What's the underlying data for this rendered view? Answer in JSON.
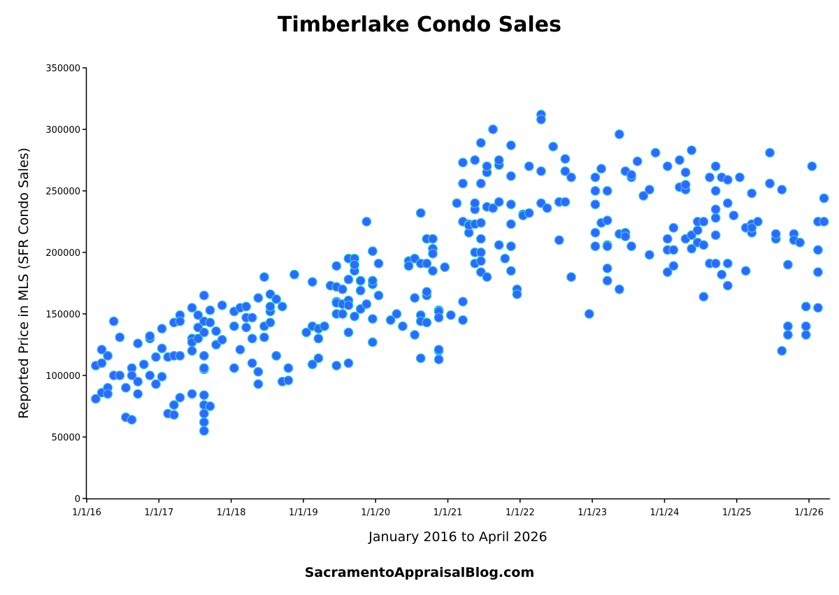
{
  "chart_data": {
    "type": "scatter",
    "title": "Timberlake Condo Sales",
    "xlabel": "January 2016 to April 2026",
    "ylabel": "Reported Price in MLS (SFR Condo Sales)",
    "footer": "SacramentoAppraisalBlog.com",
    "xlim": [
      "2016-01-01",
      "2026-04-12"
    ],
    "ylim": [
      0,
      350000
    ],
    "x_ticks": [
      {
        "date": "2016-01-01",
        "label": "1/1/16"
      },
      {
        "date": "2017-01-01",
        "label": "1/1/17"
      },
      {
        "date": "2018-01-01",
        "label": "1/1/18"
      },
      {
        "date": "2019-01-01",
        "label": "1/1/19"
      },
      {
        "date": "2020-01-01",
        "label": "1/1/20"
      },
      {
        "date": "2021-01-01",
        "label": "1/1/21"
      },
      {
        "date": "2022-01-01",
        "label": "1/1/22"
      },
      {
        "date": "2023-01-01",
        "label": "1/1/23"
      },
      {
        "date": "2024-01-01",
        "label": "1/1/24"
      },
      {
        "date": "2025-01-01",
        "label": "1/1/25"
      },
      {
        "date": "2026-01-01",
        "label": "1/1/26"
      }
    ],
    "y_ticks": [
      "0",
      "50000",
      "100000",
      "150000",
      "200000",
      "250000",
      "300000",
      "350000"
    ],
    "grid": false,
    "legend": "none",
    "colors": {
      "point_fill": "#3366ff",
      "point_stroke": "#33cccc",
      "axis": "#000000"
    },
    "points": [
      [
        "2016-02",
        108000
      ],
      [
        "2016-02",
        81000
      ],
      [
        "2016-03",
        121000
      ],
      [
        "2016-03",
        110000
      ],
      [
        "2016-03",
        86000
      ],
      [
        "2016-04",
        116000
      ],
      [
        "2016-04",
        90000
      ],
      [
        "2016-04",
        85000
      ],
      [
        "2016-05",
        144000
      ],
      [
        "2016-05",
        100000
      ],
      [
        "2016-06",
        100000
      ],
      [
        "2016-06",
        131000
      ],
      [
        "2016-07",
        66000
      ],
      [
        "2016-07",
        90000
      ],
      [
        "2016-08",
        64000
      ],
      [
        "2016-08",
        106000
      ],
      [
        "2016-08",
        100000
      ],
      [
        "2016-09",
        126000
      ],
      [
        "2016-09",
        85000
      ],
      [
        "2016-09",
        95000
      ],
      [
        "2016-10",
        109000
      ],
      [
        "2016-11",
        130000
      ],
      [
        "2016-11",
        100000
      ],
      [
        "2016-11",
        132000
      ],
      [
        "2016-12",
        93000
      ],
      [
        "2016-12",
        115000
      ],
      [
        "2017-01",
        138000
      ],
      [
        "2017-01",
        122000
      ],
      [
        "2017-01",
        99000
      ],
      [
        "2017-02",
        69000
      ],
      [
        "2017-02",
        115000
      ],
      [
        "2017-03",
        76000
      ],
      [
        "2017-03",
        68000
      ],
      [
        "2017-03",
        116000
      ],
      [
        "2017-03",
        143000
      ],
      [
        "2017-04",
        82000
      ],
      [
        "2017-04",
        116000
      ],
      [
        "2017-04",
        149000
      ],
      [
        "2017-04",
        144000
      ],
      [
        "2017-06",
        155000
      ],
      [
        "2017-06",
        130000
      ],
      [
        "2017-06",
        127000
      ],
      [
        "2017-06",
        120000
      ],
      [
        "2017-06",
        85000
      ],
      [
        "2017-07",
        139000
      ],
      [
        "2017-07",
        130000
      ],
      [
        "2017-07",
        149000
      ],
      [
        "2017-08",
        165000
      ],
      [
        "2017-08",
        105000
      ],
      [
        "2017-08",
        144000
      ],
      [
        "2017-08",
        116000
      ],
      [
        "2017-08",
        106000
      ],
      [
        "2017-08",
        84000
      ],
      [
        "2017-08",
        135000
      ],
      [
        "2017-08",
        76000
      ],
      [
        "2017-08",
        69000
      ],
      [
        "2017-08",
        62000
      ],
      [
        "2017-08",
        55000
      ],
      [
        "2017-09",
        75000
      ],
      [
        "2017-09",
        143000
      ],
      [
        "2017-09",
        153000
      ],
      [
        "2017-10",
        125000
      ],
      [
        "2017-10",
        136000
      ],
      [
        "2017-11",
        129000
      ],
      [
        "2017-11",
        157000
      ],
      [
        "2018-01",
        106000
      ],
      [
        "2018-01",
        152000
      ],
      [
        "2018-01",
        140000
      ],
      [
        "2018-02",
        121000
      ],
      [
        "2018-02",
        155000
      ],
      [
        "2018-03",
        147000
      ],
      [
        "2018-03",
        156000
      ],
      [
        "2018-03",
        139000
      ],
      [
        "2018-04",
        110000
      ],
      [
        "2018-04",
        130000
      ],
      [
        "2018-04",
        147000
      ],
      [
        "2018-05",
        93000
      ],
      [
        "2018-05",
        163000
      ],
      [
        "2018-05",
        103000
      ],
      [
        "2018-06",
        180000
      ],
      [
        "2018-06",
        140000
      ],
      [
        "2018-06",
        131000
      ],
      [
        "2018-07",
        152000
      ],
      [
        "2018-07",
        166000
      ],
      [
        "2018-07",
        143000
      ],
      [
        "2018-07",
        156000
      ],
      [
        "2018-08",
        116000
      ],
      [
        "2018-08",
        162000
      ],
      [
        "2018-09",
        95000
      ],
      [
        "2018-09",
        156000
      ],
      [
        "2018-10",
        96000
      ],
      [
        "2018-10",
        106000
      ],
      [
        "2018-11",
        182000
      ],
      [
        "2019-01",
        135000
      ],
      [
        "2019-02",
        176000
      ],
      [
        "2019-02",
        109000
      ],
      [
        "2019-02",
        140000
      ],
      [
        "2019-03",
        114000
      ],
      [
        "2019-03",
        130000
      ],
      [
        "2019-03",
        138000
      ],
      [
        "2019-04",
        140000
      ],
      [
        "2019-06",
        108000
      ],
      [
        "2019-05",
        173000
      ],
      [
        "2019-06",
        160000
      ],
      [
        "2019-06",
        159000
      ],
      [
        "2019-06",
        189000
      ],
      [
        "2019-06",
        172000
      ],
      [
        "2019-06",
        150000
      ],
      [
        "2019-07",
        158000
      ],
      [
        "2019-07",
        170000
      ],
      [
        "2019-07",
        150000
      ],
      [
        "2019-07",
        150000
      ],
      [
        "2019-08",
        135000
      ],
      [
        "2019-08",
        110000
      ],
      [
        "2019-08",
        161000
      ],
      [
        "2019-08",
        157000
      ],
      [
        "2019-08",
        195000
      ],
      [
        "2019-08",
        178000
      ],
      [
        "2019-09",
        185000
      ],
      [
        "2019-09",
        148000
      ],
      [
        "2019-09",
        195000
      ],
      [
        "2019-09",
        190000
      ],
      [
        "2019-10",
        154000
      ],
      [
        "2019-10",
        177000
      ],
      [
        "2019-10",
        169000
      ],
      [
        "2019-11",
        158000
      ],
      [
        "2019-11",
        225000
      ],
      [
        "2019-12",
        174000
      ],
      [
        "2019-12",
        201000
      ],
      [
        "2019-12",
        177000
      ],
      [
        "2019-12",
        127000
      ],
      [
        "2019-12",
        146000
      ],
      [
        "2020-01",
        191000
      ],
      [
        "2020-01",
        165000
      ],
      [
        "2020-03",
        145000
      ],
      [
        "2020-04",
        150000
      ],
      [
        "2020-05",
        140000
      ],
      [
        "2020-06",
        193000
      ],
      [
        "2020-06",
        189000
      ],
      [
        "2020-07",
        133000
      ],
      [
        "2020-07",
        163000
      ],
      [
        "2020-07",
        195000
      ],
      [
        "2020-08",
        232000
      ],
      [
        "2020-08",
        114000
      ],
      [
        "2020-08",
        149000
      ],
      [
        "2020-08",
        191000
      ],
      [
        "2020-08",
        144000
      ],
      [
        "2020-09",
        143000
      ],
      [
        "2020-09",
        211000
      ],
      [
        "2020-09",
        165000
      ],
      [
        "2020-09",
        191000
      ],
      [
        "2020-09",
        168000
      ],
      [
        "2020-10",
        211000
      ],
      [
        "2020-10",
        185000
      ],
      [
        "2020-10",
        203000
      ],
      [
        "2020-10",
        199000
      ],
      [
        "2020-11",
        120000
      ],
      [
        "2020-11",
        153000
      ],
      [
        "2020-11",
        113000
      ],
      [
        "2020-11",
        121000
      ],
      [
        "2020-11",
        152000
      ],
      [
        "2020-11",
        147000
      ],
      [
        "2020-12",
        188000
      ],
      [
        "2021-01",
        149000
      ],
      [
        "2021-02",
        240000
      ],
      [
        "2021-03",
        273000
      ],
      [
        "2021-03",
        256000
      ],
      [
        "2021-03",
        225000
      ],
      [
        "2021-03",
        145000
      ],
      [
        "2021-03",
        160000
      ],
      [
        "2021-04",
        216000
      ],
      [
        "2021-04",
        223000
      ],
      [
        "2021-04",
        222000
      ],
      [
        "2021-05",
        235000
      ],
      [
        "2021-05",
        275000
      ],
      [
        "2021-05",
        200000
      ],
      [
        "2021-05",
        191000
      ],
      [
        "2021-05",
        223000
      ],
      [
        "2021-05",
        240000
      ],
      [
        "2021-06",
        256000
      ],
      [
        "2021-06",
        184000
      ],
      [
        "2021-06",
        224000
      ],
      [
        "2021-06",
        211000
      ],
      [
        "2021-06",
        200000
      ],
      [
        "2021-06",
        193000
      ],
      [
        "2021-06",
        289000
      ],
      [
        "2021-07",
        237000
      ],
      [
        "2021-07",
        265000
      ],
      [
        "2021-07",
        270000
      ],
      [
        "2021-07",
        180000
      ],
      [
        "2021-08",
        300000
      ],
      [
        "2021-08",
        236000
      ],
      [
        "2021-09",
        206000
      ],
      [
        "2021-09",
        271000
      ],
      [
        "2021-09",
        275000
      ],
      [
        "2021-09",
        241000
      ],
      [
        "2021-10",
        195000
      ],
      [
        "2021-11",
        185000
      ],
      [
        "2021-11",
        239000
      ],
      [
        "2021-11",
        223000
      ],
      [
        "2021-11",
        262000
      ],
      [
        "2021-11",
        205000
      ],
      [
        "2021-11",
        287000
      ],
      [
        "2021-12",
        170000
      ],
      [
        "2021-12",
        166000
      ],
      [
        "2022-01",
        231000
      ],
      [
        "2022-01",
        230000
      ],
      [
        "2022-02",
        270000
      ],
      [
        "2022-02",
        232000
      ],
      [
        "2022-04",
        266000
      ],
      [
        "2022-04",
        312000
      ],
      [
        "2022-04",
        308000
      ],
      [
        "2022-04",
        240000
      ],
      [
        "2022-05",
        236000
      ],
      [
        "2022-06",
        286000
      ],
      [
        "2022-07",
        241000
      ],
      [
        "2022-07",
        210000
      ],
      [
        "2022-07",
        241000
      ],
      [
        "2022-08",
        276000
      ],
      [
        "2022-08",
        241000
      ],
      [
        "2022-08",
        266000
      ],
      [
        "2022-09",
        180000
      ],
      [
        "2022-09",
        261000
      ],
      [
        "2022-12",
        150000
      ],
      [
        "2023-01",
        261000
      ],
      [
        "2023-01",
        239000
      ],
      [
        "2023-01",
        216000
      ],
      [
        "2023-01",
        205000
      ],
      [
        "2023-01",
        250000
      ],
      [
        "2023-02",
        268000
      ],
      [
        "2023-02",
        224000
      ],
      [
        "2023-03",
        206000
      ],
      [
        "2023-03",
        187000
      ],
      [
        "2023-03",
        226000
      ],
      [
        "2023-03",
        177000
      ],
      [
        "2023-03",
        250000
      ],
      [
        "2023-03",
        205000
      ],
      [
        "2023-05",
        296000
      ],
      [
        "2023-05",
        215000
      ],
      [
        "2023-05",
        170000
      ],
      [
        "2023-06",
        216000
      ],
      [
        "2023-06",
        266000
      ],
      [
        "2023-06",
        213000
      ],
      [
        "2023-07",
        261000
      ],
      [
        "2023-07",
        205000
      ],
      [
        "2023-07",
        263000
      ],
      [
        "2023-08",
        274000
      ],
      [
        "2023-09",
        246000
      ],
      [
        "2023-10",
        251000
      ],
      [
        "2023-10",
        198000
      ],
      [
        "2023-11",
        281000
      ],
      [
        "2024-01",
        270000
      ],
      [
        "2024-01",
        211000
      ],
      [
        "2024-01",
        202000
      ],
      [
        "2024-01",
        184000
      ],
      [
        "2024-02",
        220000
      ],
      [
        "2024-02",
        189000
      ],
      [
        "2024-02",
        202000
      ],
      [
        "2024-03",
        253000
      ],
      [
        "2024-03",
        275000
      ],
      [
        "2024-04",
        251000
      ],
      [
        "2024-04",
        255000
      ],
      [
        "2024-04",
        265000
      ],
      [
        "2024-04",
        211000
      ],
      [
        "2024-05",
        214000
      ],
      [
        "2024-05",
        203000
      ],
      [
        "2024-05",
        283000
      ],
      [
        "2024-06",
        218000
      ],
      [
        "2024-06",
        208000
      ],
      [
        "2024-06",
        225000
      ],
      [
        "2024-07",
        225000
      ],
      [
        "2024-07",
        164000
      ],
      [
        "2024-07",
        206000
      ],
      [
        "2024-08",
        261000
      ],
      [
        "2024-08",
        191000
      ],
      [
        "2024-09",
        191000
      ],
      [
        "2024-09",
        250000
      ],
      [
        "2024-09",
        270000
      ],
      [
        "2024-09",
        214000
      ],
      [
        "2024-09",
        228000
      ],
      [
        "2024-09",
        235000
      ],
      [
        "2024-10",
        261000
      ],
      [
        "2024-10",
        182000
      ],
      [
        "2024-11",
        173000
      ],
      [
        "2024-11",
        240000
      ],
      [
        "2024-11",
        191000
      ],
      [
        "2024-11",
        259000
      ],
      [
        "2024-12",
        230000
      ],
      [
        "2025-01",
        261000
      ],
      [
        "2025-02",
        220000
      ],
      [
        "2025-02",
        185000
      ],
      [
        "2025-03",
        216000
      ],
      [
        "2025-03",
        248000
      ],
      [
        "2025-03",
        223000
      ],
      [
        "2025-03",
        220000
      ],
      [
        "2025-04",
        225000
      ],
      [
        "2025-06",
        281000
      ],
      [
        "2025-06",
        256000
      ],
      [
        "2025-06",
        256000
      ],
      [
        "2025-08",
        120000
      ],
      [
        "2025-07",
        211000
      ],
      [
        "2025-07",
        215000
      ],
      [
        "2025-08",
        251000
      ],
      [
        "2025-09",
        190000
      ],
      [
        "2025-09",
        140000
      ],
      [
        "2025-09",
        133000
      ],
      [
        "2025-10",
        215000
      ],
      [
        "2025-10",
        210000
      ],
      [
        "2025-11",
        208000
      ],
      [
        "2025-12",
        156000
      ],
      [
        "2025-12",
        140000
      ],
      [
        "2025-12",
        133000
      ],
      [
        "2026-01",
        270000
      ],
      [
        "2026-02",
        184000
      ],
      [
        "2026-02",
        202000
      ],
      [
        "2026-02",
        155000
      ],
      [
        "2026-02",
        225000
      ],
      [
        "2026-03",
        225000
      ],
      [
        "2026-03",
        244000
      ]
    ]
  }
}
